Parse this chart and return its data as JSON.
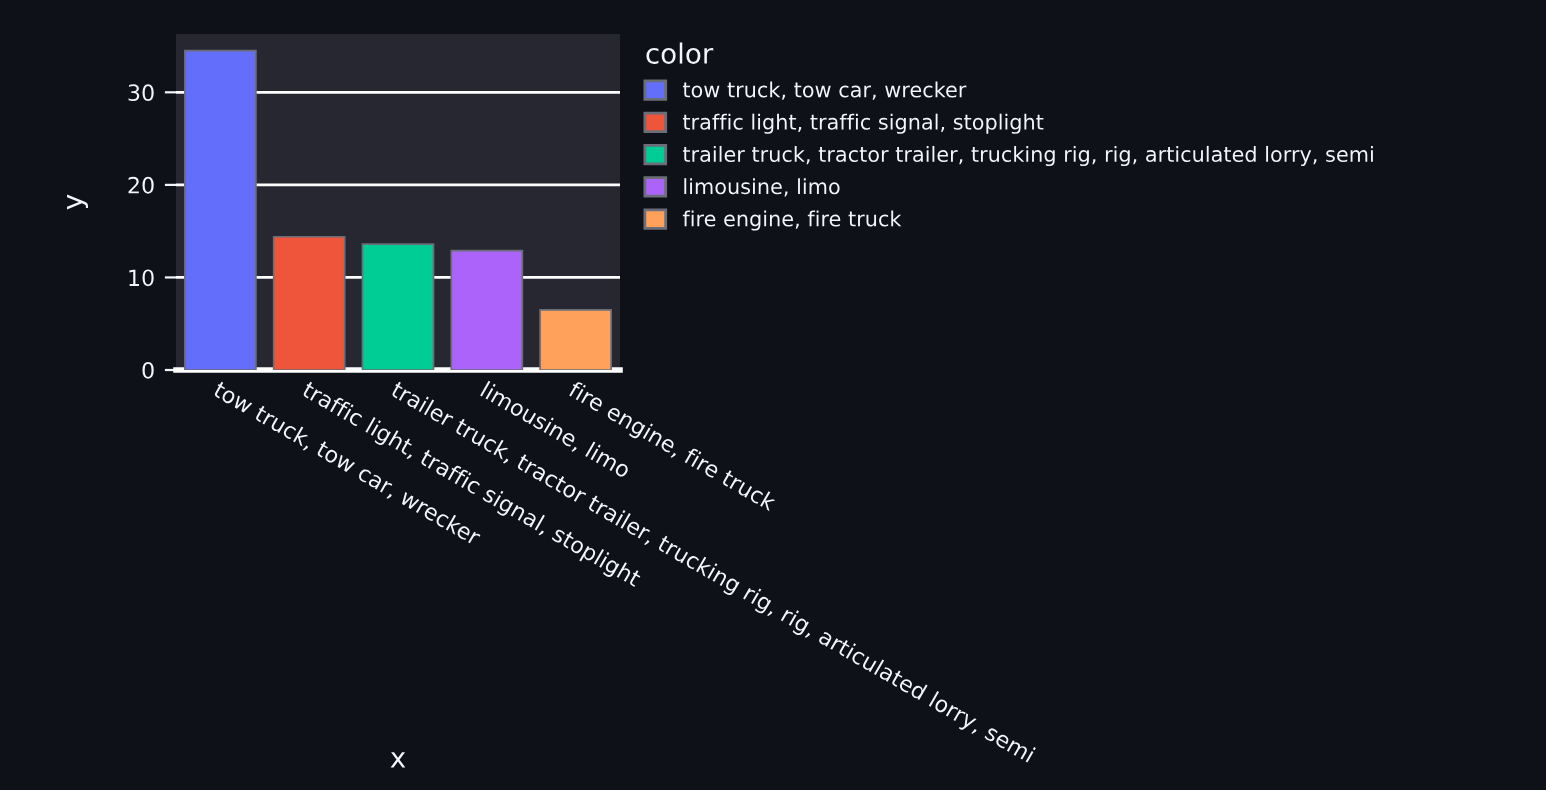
{
  "chart_data": {
    "type": "bar",
    "xlabel": "x",
    "ylabel": "y",
    "legend_title": "color",
    "categories": [
      "tow truck, tow car, wrecker",
      "traffic light, traffic signal, stoplight",
      "trailer truck, tractor trailer, trucking rig, rig, articulated lorry, semi",
      "limousine, limo",
      "fire engine, fire truck"
    ],
    "series": [
      {
        "name": "tow truck, tow car, wrecker",
        "color": "#636efa",
        "values": [
          34.5,
          null,
          null,
          null,
          null
        ]
      },
      {
        "name": "traffic light, traffic signal, stoplight",
        "color": "#ef553b",
        "values": [
          null,
          14.4,
          null,
          null,
          null
        ]
      },
      {
        "name": "trailer truck, tractor trailer, trucking rig, rig, articulated lorry, semi",
        "color": "#00cc96",
        "values": [
          null,
          null,
          13.6,
          null,
          null
        ]
      },
      {
        "name": "limousine, limo",
        "color": "#ab63fa",
        "values": [
          null,
          null,
          null,
          12.9,
          null
        ]
      },
      {
        "name": "fire engine, fire truck",
        "color": "#ffa15a",
        "values": [
          null,
          null,
          null,
          null,
          6.5
        ]
      }
    ],
    "ylim": [
      0,
      36.3
    ],
    "yticks": [
      0,
      10,
      20,
      30
    ],
    "grid": "y",
    "legend": "right"
  }
}
